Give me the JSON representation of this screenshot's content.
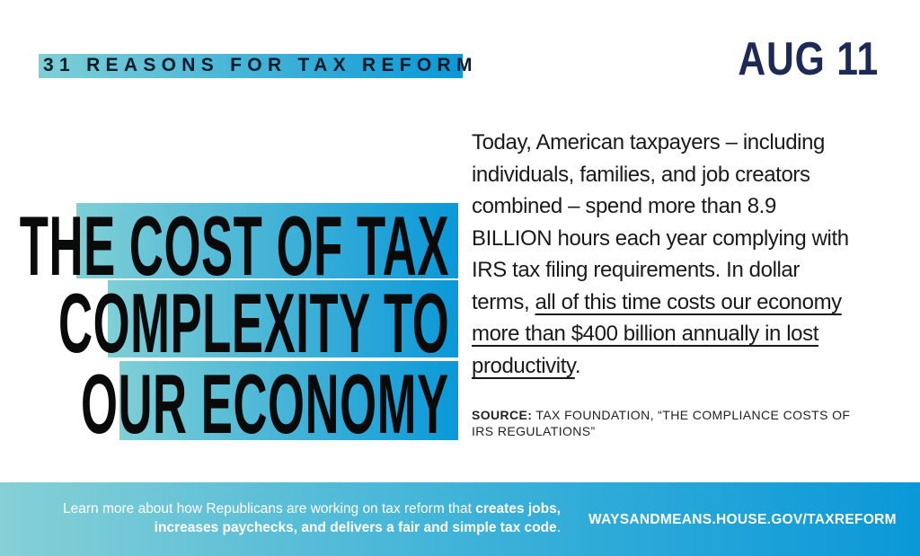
{
  "kicker": "31 REASONS FOR TAX REFORM",
  "date": "AUG 11",
  "headline": [
    "THE COST OF TAX",
    "COMPLEXITY TO",
    "OUR ECONOMY"
  ],
  "body": {
    "text_plain": "Today, American taxpayers – including individuals, families, and job creators combined – spend more than 8.9 BILLION hours each year complying with IRS tax filing requirements. In dollar terms, ",
    "text_underlined": "all of this time costs our economy more than $400 billion annually in lost productivity",
    "text_end": "."
  },
  "source": {
    "label": "SOURCE:",
    "text": "TAX FOUNDATION, “THE COMPLIANCE COSTS OF IRS REGULATIONS”"
  },
  "footer": {
    "learn_plain": "Learn more about how Republicans are working on tax reform that ",
    "learn_bold": "creates jobs, increases paychecks, and delivers a fair and simple tax code",
    "learn_end": ".",
    "url": "WAYSANDMEANS.HOUSE.GOV/TAXREFORM"
  },
  "colors": {
    "gradient_start": "#7fcfd6",
    "gradient_end": "#0a98d8",
    "date": "#1d2a55"
  }
}
